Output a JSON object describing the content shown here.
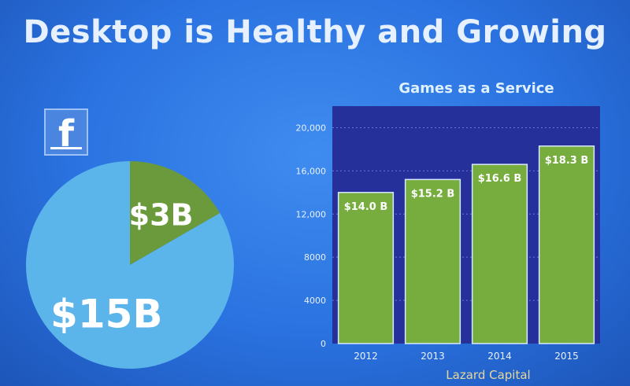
{
  "slide": {
    "title": "Desktop is Healthy and Growing"
  },
  "brand_icon": {
    "name": "facebook-icon",
    "glyph": "f",
    "color": "#4a86e0"
  },
  "chart_data": [
    {
      "type": "pie",
      "slices": [
        {
          "label": "$3B",
          "value": 3,
          "color": "#6a9a3c"
        },
        {
          "label": "$15B",
          "value": 15,
          "color": "#5bb4ea"
        }
      ]
    },
    {
      "type": "bar",
      "title": "Games as a Service",
      "categories": [
        "2012",
        "2013",
        "2014",
        "2015"
      ],
      "values": [
        14.0,
        15.2,
        16.6,
        18.3
      ],
      "value_labels": [
        "$14.0 B",
        "$15.2 B",
        "$16.6 B",
        "$18.3 B"
      ],
      "yticks": [
        "0",
        "4000",
        "8000",
        "12,000",
        "16,000",
        "20,000"
      ],
      "ylim": [
        0,
        22000
      ],
      "value_scale": 1000,
      "grid": true,
      "source": "Lazard Capital",
      "bar_color": "#76ad3e",
      "plot_bg": "#26309a"
    }
  ]
}
